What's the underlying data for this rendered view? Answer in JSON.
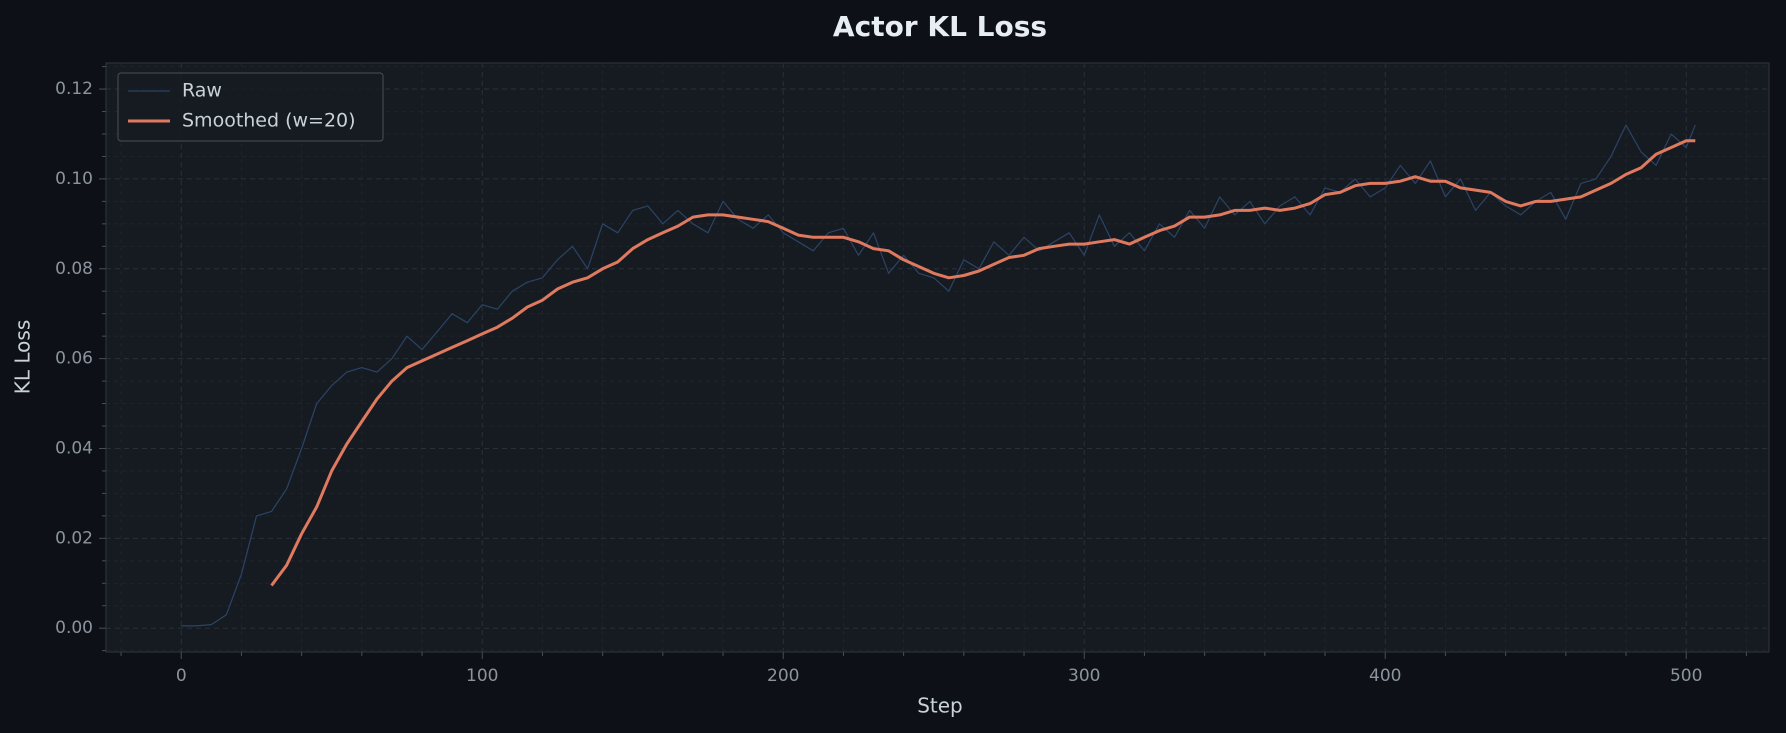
{
  "chart_data": {
    "type": "line",
    "title": "Actor KL Loss",
    "xlabel": "Step",
    "ylabel": "KL Loss",
    "xlim": [
      -25,
      527.5
    ],
    "ylim": [
      -0.0053,
      0.1258
    ],
    "xticks": [
      0,
      100,
      200,
      300,
      400,
      500
    ],
    "yticks": [
      {
        "value": 0,
        "label": "0.00"
      },
      {
        "value": 0.02,
        "label": "0.02"
      },
      {
        "value": 0.04,
        "label": "0.04"
      },
      {
        "value": 0.06,
        "label": "0.06"
      },
      {
        "value": 0.08,
        "label": "0.08"
      },
      {
        "value": 0.1,
        "label": "0.10"
      },
      {
        "value": 0.12,
        "label": "0.12"
      }
    ],
    "xminorticks": [
      -20,
      20,
      40,
      60,
      80,
      120,
      140,
      160,
      180,
      220,
      240,
      260,
      280,
      320,
      340,
      360,
      380,
      420,
      440,
      460,
      480,
      520
    ],
    "yminorticks": [
      -0.005,
      0.005,
      0.01,
      0.015,
      0.025,
      0.03,
      0.035,
      0.045,
      0.05,
      0.055,
      0.065,
      0.07,
      0.075,
      0.085,
      0.09,
      0.095,
      0.105,
      0.11,
      0.115,
      0.125
    ],
    "grid": true,
    "legend": "upper left",
    "series": [
      {
        "name": "Raw",
        "color": "#2b4466",
        "width": 1.2,
        "x": [
          0,
          5,
          10,
          15,
          20,
          25,
          30,
          35,
          40,
          45,
          50,
          55,
          60,
          65,
          70,
          75,
          80,
          85,
          90,
          95,
          100,
          105,
          110,
          115,
          120,
          125,
          130,
          135,
          140,
          145,
          150,
          155,
          160,
          165,
          170,
          175,
          180,
          185,
          190,
          195,
          200,
          205,
          210,
          215,
          220,
          225,
          230,
          235,
          240,
          245,
          250,
          255,
          260,
          265,
          270,
          275,
          280,
          285,
          290,
          295,
          300,
          305,
          310,
          315,
          320,
          325,
          330,
          335,
          340,
          345,
          350,
          355,
          360,
          365,
          370,
          375,
          380,
          385,
          390,
          395,
          400,
          405,
          410,
          415,
          420,
          425,
          430,
          435,
          440,
          445,
          450,
          455,
          460,
          465,
          470,
          475,
          480,
          485,
          490,
          495,
          500,
          503
        ],
        "values": [
          0.0005,
          0.0005,
          0.0008,
          0.003,
          0.012,
          0.025,
          0.026,
          0.031,
          0.04,
          0.05,
          0.054,
          0.057,
          0.058,
          0.057,
          0.06,
          0.065,
          0.062,
          0.066,
          0.07,
          0.068,
          0.072,
          0.071,
          0.075,
          0.077,
          0.078,
          0.082,
          0.085,
          0.08,
          0.09,
          0.088,
          0.093,
          0.094,
          0.09,
          0.093,
          0.09,
          0.088,
          0.095,
          0.091,
          0.089,
          0.092,
          0.088,
          0.086,
          0.084,
          0.088,
          0.089,
          0.083,
          0.088,
          0.079,
          0.083,
          0.079,
          0.078,
          0.075,
          0.082,
          0.08,
          0.086,
          0.083,
          0.087,
          0.084,
          0.086,
          0.088,
          0.083,
          0.092,
          0.085,
          0.088,
          0.084,
          0.09,
          0.087,
          0.093,
          0.089,
          0.096,
          0.092,
          0.095,
          0.09,
          0.094,
          0.096,
          0.092,
          0.098,
          0.097,
          0.1,
          0.096,
          0.098,
          0.103,
          0.099,
          0.104,
          0.096,
          0.1,
          0.093,
          0.097,
          0.094,
          0.092,
          0.095,
          0.097,
          0.091,
          0.099,
          0.1,
          0.105,
          0.112,
          0.106,
          0.103,
          0.11,
          0.107,
          0.112
        ]
      },
      {
        "name": "Smoothed (w=20)",
        "color": "#e07a5f",
        "width": 3,
        "x": [
          30,
          35,
          40,
          45,
          50,
          55,
          60,
          65,
          70,
          75,
          80,
          85,
          90,
          95,
          100,
          105,
          110,
          115,
          120,
          125,
          130,
          135,
          140,
          145,
          150,
          155,
          160,
          165,
          170,
          175,
          180,
          185,
          190,
          195,
          200,
          205,
          210,
          215,
          220,
          225,
          230,
          235,
          240,
          245,
          250,
          255,
          260,
          265,
          270,
          275,
          280,
          285,
          290,
          295,
          300,
          305,
          310,
          315,
          320,
          325,
          330,
          335,
          340,
          345,
          350,
          355,
          360,
          365,
          370,
          375,
          380,
          385,
          390,
          395,
          400,
          405,
          410,
          415,
          420,
          425,
          430,
          435,
          440,
          445,
          450,
          455,
          460,
          465,
          470,
          475,
          480,
          485,
          490,
          495,
          500,
          503
        ],
        "values": [
          0.0095,
          0.014,
          0.021,
          0.027,
          0.035,
          0.041,
          0.046,
          0.051,
          0.055,
          0.058,
          0.0595,
          0.061,
          0.0625,
          0.064,
          0.0655,
          0.067,
          0.069,
          0.0715,
          0.073,
          0.0755,
          0.077,
          0.078,
          0.08,
          0.0815,
          0.0845,
          0.0865,
          0.088,
          0.0895,
          0.0915,
          0.092,
          0.092,
          0.0915,
          0.091,
          0.0905,
          0.089,
          0.0875,
          0.087,
          0.087,
          0.087,
          0.086,
          0.0845,
          0.084,
          0.082,
          0.0805,
          0.079,
          0.078,
          0.0785,
          0.0795,
          0.081,
          0.0825,
          0.083,
          0.0845,
          0.085,
          0.0855,
          0.0855,
          0.086,
          0.0865,
          0.0855,
          0.087,
          0.0885,
          0.0895,
          0.0915,
          0.0915,
          0.092,
          0.093,
          0.093,
          0.0935,
          0.093,
          0.0935,
          0.0945,
          0.0965,
          0.097,
          0.0985,
          0.099,
          0.099,
          0.0995,
          0.1005,
          0.0995,
          0.0995,
          0.098,
          0.0975,
          0.097,
          0.095,
          0.094,
          0.095,
          0.095,
          0.0955,
          0.096,
          0.0975,
          0.099,
          0.101,
          0.1025,
          0.1055,
          0.107,
          0.1085,
          0.1085
        ]
      }
    ]
  }
}
